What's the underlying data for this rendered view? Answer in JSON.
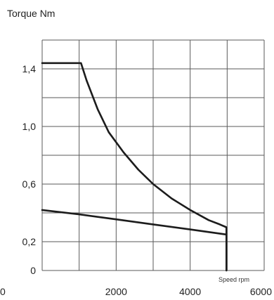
{
  "chart_data": {
    "type": "line",
    "ylabel": "Torque Nm",
    "xlabel": "Speed rpm",
    "xlim": [
      0,
      6000
    ],
    "ylim": [
      0,
      1.6
    ],
    "x_ticks": [
      "0",
      "2000",
      "4000",
      "6000"
    ],
    "x_tick_values": [
      0,
      2000,
      4000,
      6000
    ],
    "y_ticks": [
      "0",
      "0,2",
      "0,6",
      "1,0",
      "1,4"
    ],
    "y_tick_values": [
      0,
      0.2,
      0.6,
      1.0,
      1.4
    ],
    "grid": true,
    "series": [
      {
        "x": [
          0,
          1050,
          1200,
          1500,
          1800,
          2200,
          2600,
          3000,
          3500,
          4000,
          4500,
          4800,
          4980,
          4980,
          4980
        ],
        "y": [
          1.44,
          1.44,
          1.32,
          1.12,
          0.96,
          0.82,
          0.7,
          0.6,
          0.5,
          0.42,
          0.35,
          0.32,
          0.3,
          0.22,
          0.0
        ]
      },
      {
        "x": [
          0,
          1000,
          2000,
          3000,
          4000,
          4980
        ],
        "y": [
          0.42,
          0.39,
          0.355,
          0.32,
          0.285,
          0.25
        ]
      }
    ],
    "colors": {
      "line": "#1c1c1c",
      "grid": "#5a5a5a"
    }
  }
}
